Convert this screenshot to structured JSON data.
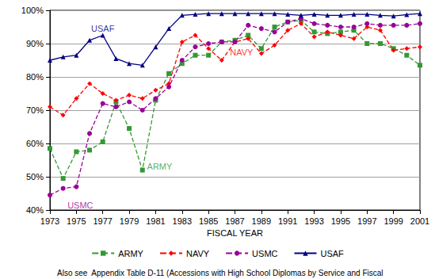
{
  "chart_data": {
    "type": "line",
    "x_label": "FISCAL YEAR",
    "footnote": "Also see  Appendix Table D-11 (Accessions with High School Diplomas by Service and Fiscal",
    "x": [
      1973,
      1974,
      1975,
      1976,
      1977,
      1978,
      1979,
      1980,
      1981,
      1982,
      1983,
      1984,
      1985,
      1986,
      1987,
      1988,
      1989,
      1990,
      1991,
      1992,
      1993,
      1994,
      1995,
      1996,
      1997,
      1998,
      1999,
      2000,
      2001
    ],
    "xlim": [
      1973,
      2001
    ],
    "xticks": [
      1973,
      1975,
      1977,
      1979,
      1981,
      1983,
      1985,
      1987,
      1989,
      1991,
      1993,
      1995,
      1997,
      1999,
      2001
    ],
    "ylim": [
      40,
      100
    ],
    "yticks": [
      {
        "value": 40,
        "label": "40%"
      },
      {
        "value": 50,
        "label": "50%"
      },
      {
        "value": 60,
        "label": "60%"
      },
      {
        "value": 70,
        "label": "70%"
      },
      {
        "value": 80,
        "label": "80%"
      },
      {
        "value": 90,
        "label": "90%"
      },
      {
        "value": 100,
        "label": "100%"
      }
    ],
    "grid": true,
    "legend": "bottom",
    "series": [
      {
        "name": "ARMY",
        "color": "#339933",
        "marker": "rect",
        "line_style": "dashed",
        "values": [
          58.5,
          49.5,
          57.5,
          58,
          60.5,
          72.5,
          64.5,
          52,
          73,
          81,
          84,
          86.5,
          86.5,
          90.5,
          91,
          92.5,
          88.5,
          95,
          96.5,
          97,
          93.5,
          93,
          93.5,
          94,
          90,
          90,
          88.5,
          86.5,
          83.5
        ]
      },
      {
        "name": "NAVY",
        "color": "#ff0000",
        "marker": "diamond",
        "line_style": "dashed",
        "values": [
          71,
          68.5,
          73.5,
          78,
          75,
          73,
          74.5,
          73.5,
          76,
          78,
          90.5,
          92.5,
          88.5,
          85,
          90.5,
          91.5,
          87,
          89.5,
          94,
          96,
          92,
          93.5,
          92.5,
          91.5,
          95,
          94,
          88,
          88.5,
          89
        ]
      },
      {
        "name": "USMC",
        "color": "#990099",
        "marker": "circle",
        "line_style": "dashed",
        "values": [
          44.5,
          46.5,
          47,
          63,
          72,
          71,
          72.5,
          70,
          73.5,
          77,
          85,
          89,
          90,
          90.5,
          90.5,
          95.5,
          94.5,
          93.5,
          96.5,
          97.5,
          96,
          95.5,
          95,
          95,
          96,
          95.5,
          95.5,
          95.5,
          96
        ]
      },
      {
        "name": "USAF",
        "color": "#000080",
        "marker": "triangle",
        "line_style": "solid",
        "values": [
          85,
          86,
          86.5,
          91,
          92.5,
          85.5,
          84,
          83.5,
          89,
          94.5,
          98.5,
          98.8,
          99,
          99,
          99,
          99,
          99,
          99,
          98.8,
          98.5,
          98.8,
          98.5,
          98.5,
          98.8,
          98.8,
          98.5,
          98.3,
          98.7,
          99
        ]
      }
    ],
    "annotations": [
      {
        "text": "USAF",
        "x": 1977,
        "y": 94.5,
        "color": "#000080"
      },
      {
        "text": "NAVY",
        "x": 1987.5,
        "y": 87.5,
        "color": "#ff0000"
      },
      {
        "text": "ARMY",
        "x": 1981.3,
        "y": 53,
        "color": "#339933"
      },
      {
        "text": "USMC",
        "x": 1975.3,
        "y": 41.5,
        "color": "#990099"
      }
    ]
  }
}
